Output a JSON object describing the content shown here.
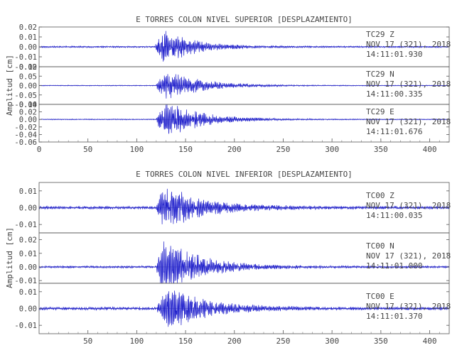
{
  "chart_data": [
    {
      "type": "line",
      "title": "E TORRES COLON NIVEL SUPERIOR [DESPLAZAMIENTO]",
      "ylabel": "Amplitud [cm]",
      "xlim": [
        0,
        420
      ],
      "x_ticks": [
        "0",
        "50",
        "100",
        "150",
        "200",
        "250",
        "300",
        "350",
        "400"
      ],
      "series": [
        {
          "station": "TC29",
          "component": "Z",
          "date": "NOV 17 (321), 2018",
          "time": "14:11:01.930",
          "ylim": [
            -0.02,
            0.02
          ],
          "y_ticks": [
            "0.02",
            "0.01",
            "0.00",
            "-0.01",
            "-0.02"
          ],
          "onset": 119,
          "peak_time": 126,
          "peak_amp": 0.02,
          "noise": 0.0008,
          "decay": 30,
          "seed": 11
        },
        {
          "station": "TC29",
          "component": "N",
          "date": "NOV 17 (321), 2018",
          "time": "14:11:00.335",
          "ylim": [
            -0.1,
            0.1
          ],
          "y_ticks": [
            "0.10",
            "0.05",
            "0.00",
            "-0.05",
            "-0.10"
          ],
          "onset": 120,
          "peak_time": 130,
          "peak_amp": 0.09,
          "noise": 0.002,
          "decay": 34,
          "seed": 23
        },
        {
          "station": "TC29",
          "component": "E",
          "date": "NOV 17 (321), 2018",
          "time": "14:11:01.676",
          "ylim": [
            -0.06,
            0.04
          ],
          "y_ticks": [
            "0.04",
            "0.02",
            "0.00",
            "-0.02",
            "-0.04",
            "-0.06"
          ],
          "onset": 120,
          "peak_time": 130,
          "peak_amp": 0.055,
          "noise": 0.0012,
          "decay": 34,
          "seed": 37
        }
      ]
    },
    {
      "type": "line",
      "title": "E TORRES COLON NIVEL INFERIOR [DESPLAZAMIENTO]",
      "ylabel": "Amplitud [cm]",
      "xlim": [
        0,
        420
      ],
      "x_ticks": [
        "50",
        "100",
        "150",
        "200",
        "250",
        "300",
        "350",
        "400"
      ],
      "series": [
        {
          "station": "TC00",
          "component": "Z",
          "date": "NOV 17 (321), 2018",
          "time": "14:11:00.035",
          "ylim": [
            -0.015,
            0.015
          ],
          "y_ticks": [
            "0.01",
            "0.00",
            "-0.01"
          ],
          "onset": 120,
          "peak_time": 130,
          "peak_amp": 0.014,
          "noise": 0.0009,
          "decay": 38,
          "seed": 41
        },
        {
          "station": "TC00",
          "component": "N",
          "date": "NOV 17 (321), 2018",
          "time": "14:11:01.000",
          "ylim": [
            -0.012,
            0.025
          ],
          "y_ticks": [
            "0.02",
            "0.01",
            "0.00",
            "-0.01"
          ],
          "onset": 120,
          "peak_time": 128,
          "peak_amp": 0.023,
          "noise": 0.0008,
          "decay": 36,
          "seed": 53
        },
        {
          "station": "TC00",
          "component": "E",
          "date": "NOV 17 (321), 2018",
          "time": "14:11:01.370",
          "ylim": [
            -0.015,
            0.015
          ],
          "y_ticks": [
            "0.01",
            "0.00",
            "-0.01"
          ],
          "onset": 120,
          "peak_time": 134,
          "peak_amp": 0.014,
          "noise": 0.0009,
          "decay": 38,
          "seed": 67
        }
      ]
    }
  ]
}
